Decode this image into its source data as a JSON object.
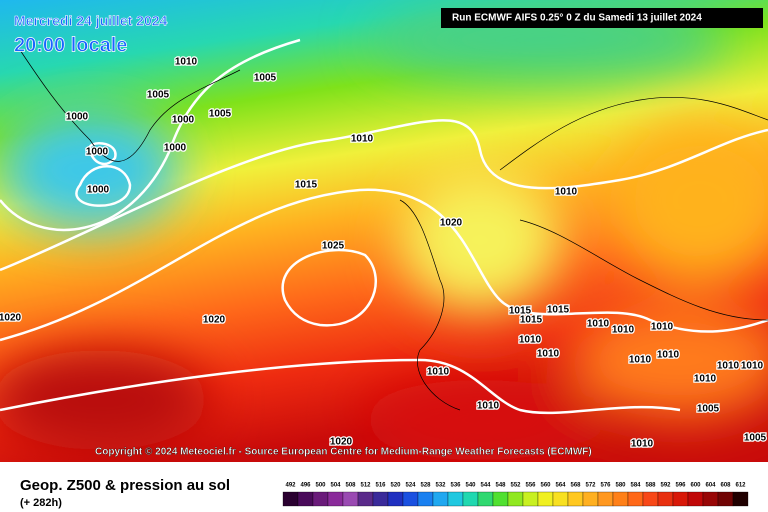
{
  "header": {
    "date": "Mercredi 24 juillet 2024",
    "time": "20:00 locale",
    "run": "Run ECMWF AIFS 0.25° 0 Z du Samedi 13 juillet 2024"
  },
  "copyright": "Copyright © 2024 Meteociel.fr - Source European Centre for Medium-Range Weather Forecasts (ECMWF)",
  "footer": {
    "title": "Geop. Z500 & pression au sol",
    "lead": "(+ 282h)"
  },
  "legend": {
    "labels": [
      "492",
      "496",
      "500",
      "504",
      "508",
      "512",
      "516",
      "520",
      "524",
      "528",
      "532",
      "536",
      "540",
      "544",
      "548",
      "552",
      "556",
      "560",
      "564",
      "568",
      "572",
      "576",
      "580",
      "584",
      "588",
      "592",
      "596",
      "600",
      "604",
      "608",
      "612"
    ]
  },
  "isobar_labels": [
    "1010",
    "1005",
    "1005",
    "1000",
    "1000",
    "1005",
    "1000",
    "1000",
    "1000",
    "1010",
    "1015",
    "1010",
    "1020",
    "1025",
    "1020",
    "1020",
    "1015",
    "1015",
    "1015",
    "1010",
    "1010",
    "1010",
    "1010",
    "1010",
    "1010",
    "1010",
    "1010",
    "1010",
    "1010",
    "1010",
    "1010",
    "1005",
    "1005",
    "1020",
    "1010"
  ]
}
